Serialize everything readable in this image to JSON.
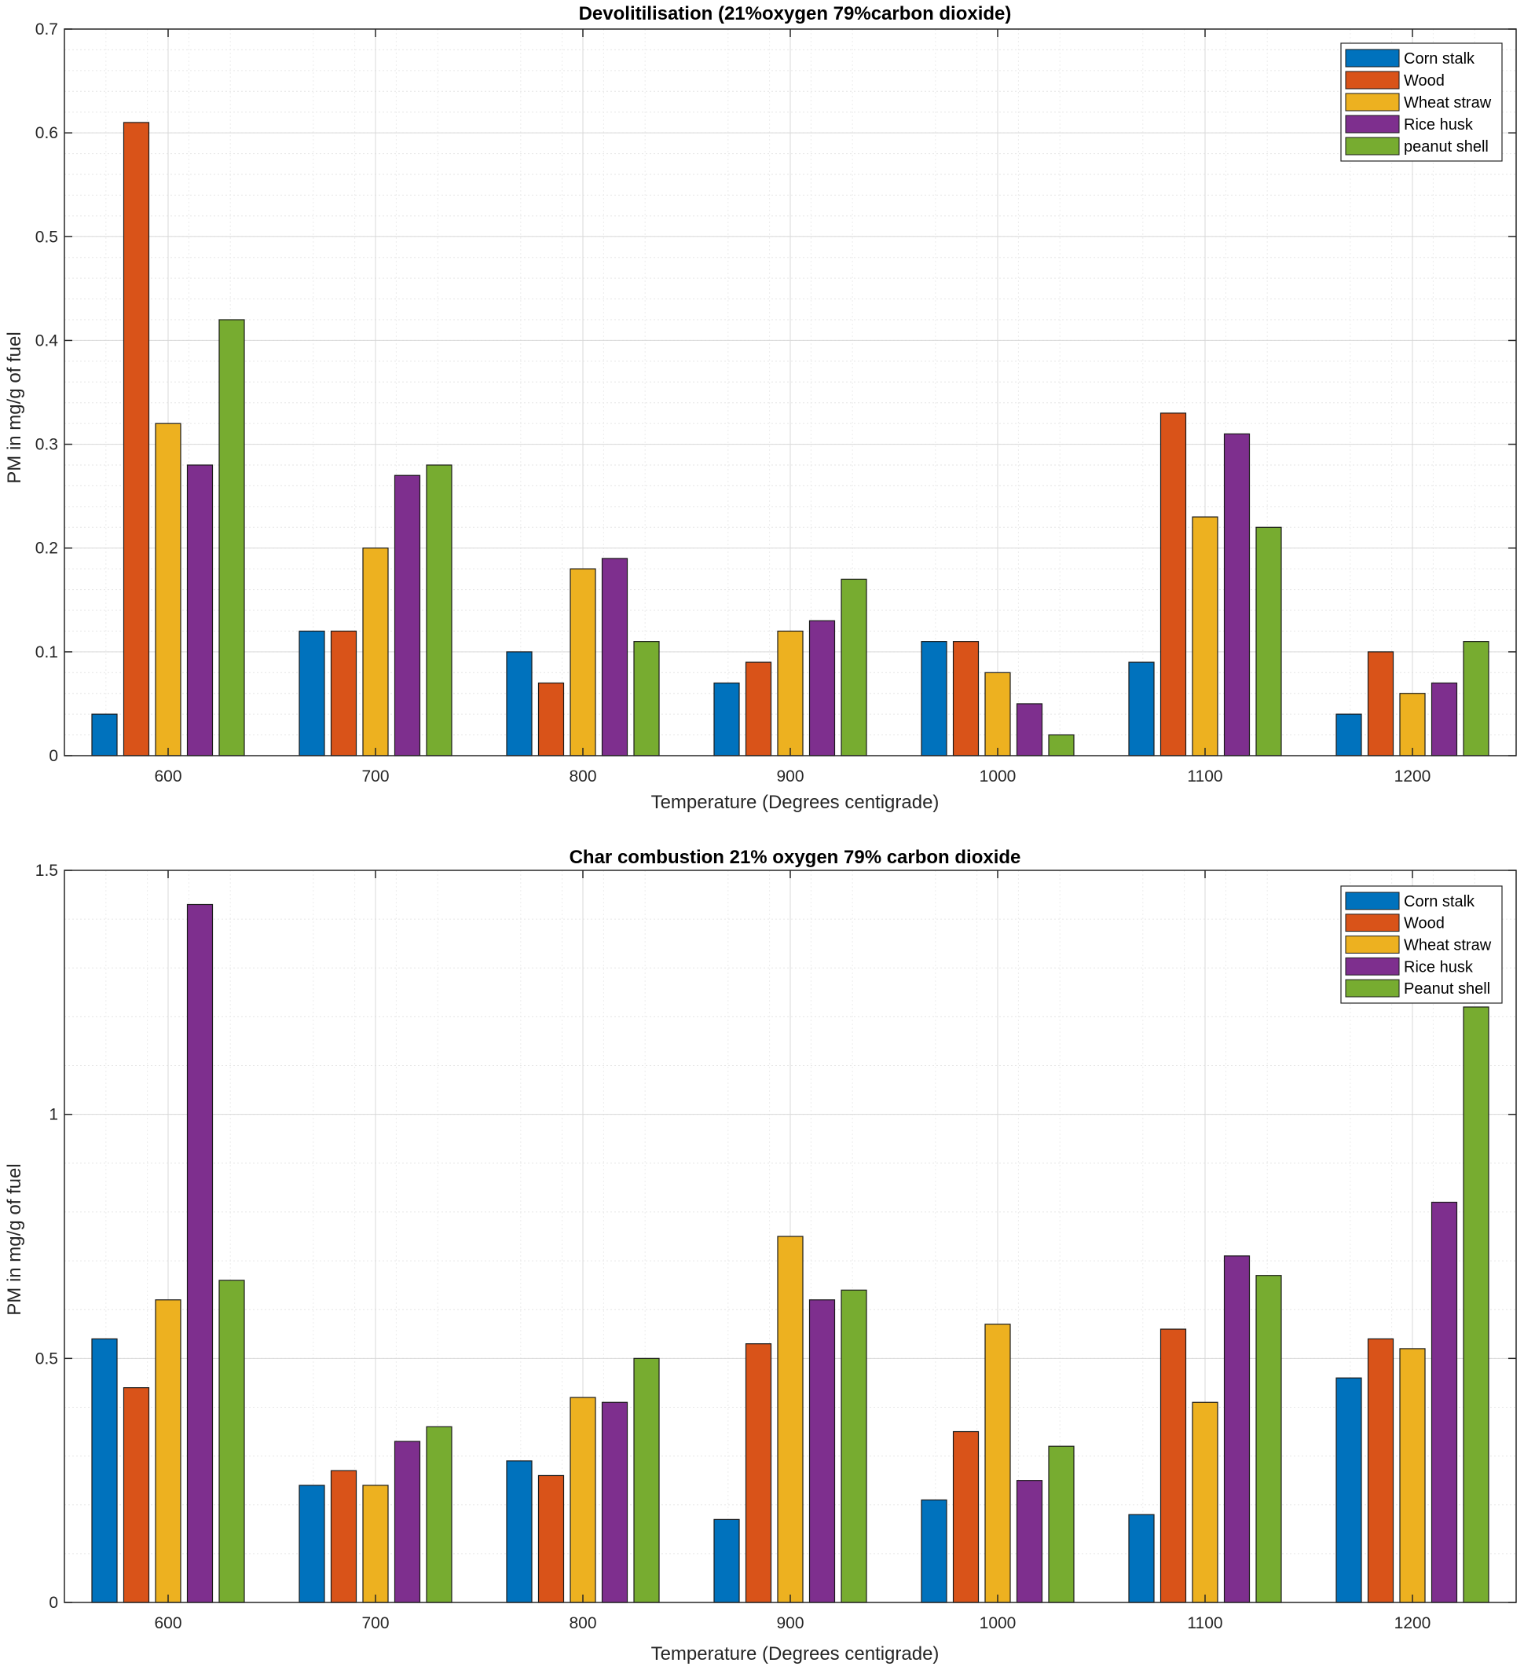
{
  "chart_data": [
    {
      "type": "bar",
      "title": "Devolitilisation (21%oxygen 79%carbon dioxide)",
      "xlabel": "Temperature (Degrees centigrade)",
      "ylabel": "PM in mg/g of fuel",
      "categories": [
        "600",
        "700",
        "800",
        "900",
        "1000",
        "1100",
        "1200"
      ],
      "ylim": [
        0,
        0.7
      ],
      "yticks": [
        0,
        0.1,
        0.2,
        0.3,
        0.4,
        0.5,
        0.6,
        0.7
      ],
      "ytick_labels": [
        "0",
        "0.1",
        "0.2",
        "0.3",
        "0.4",
        "0.5",
        "0.6",
        "0.7"
      ],
      "grid": true,
      "minor_grid": true,
      "legend_position": "top-right",
      "series": [
        {
          "name": "Corn stalk",
          "color": "#0072BD",
          "values": [
            0.04,
            0.12,
            0.1,
            0.07,
            0.11,
            0.09,
            0.04
          ]
        },
        {
          "name": "Wood",
          "color": "#D95319",
          "values": [
            0.61,
            0.12,
            0.07,
            0.09,
            0.11,
            0.33,
            0.1
          ]
        },
        {
          "name": "Wheat straw",
          "color": "#EDB120",
          "values": [
            0.32,
            0.2,
            0.18,
            0.12,
            0.08,
            0.23,
            0.06
          ]
        },
        {
          "name": "Rice husk",
          "color": "#7E2F8E",
          "values": [
            0.28,
            0.27,
            0.19,
            0.13,
            0.05,
            0.31,
            0.07
          ]
        },
        {
          "name": "peanut shell",
          "color": "#77AC30",
          "values": [
            0.42,
            0.28,
            0.11,
            0.17,
            0.02,
            0.22,
            0.11
          ]
        }
      ]
    },
    {
      "type": "bar",
      "title": "Char combustion 21% oxygen 79% carbon dioxide",
      "xlabel": "Temperature (Degrees centigrade)",
      "ylabel": "PM in mg/g of fuel",
      "categories": [
        "600",
        "700",
        "800",
        "900",
        "1000",
        "1100",
        "1200"
      ],
      "ylim": [
        0,
        1.5
      ],
      "yticks": [
        0,
        0.5,
        1,
        1.5
      ],
      "ytick_labels": [
        "0",
        "0.5",
        "1",
        "1.5"
      ],
      "grid": true,
      "minor_grid": true,
      "legend_position": "top-right",
      "series": [
        {
          "name": "Corn stalk",
          "color": "#0072BD",
          "values": [
            0.54,
            0.24,
            0.29,
            0.17,
            0.21,
            0.18,
            0.46
          ]
        },
        {
          "name": "Wood",
          "color": "#D95319",
          "values": [
            0.44,
            0.27,
            0.26,
            0.53,
            0.35,
            0.56,
            0.54
          ]
        },
        {
          "name": "Wheat straw",
          "color": "#EDB120",
          "values": [
            0.62,
            0.24,
            0.42,
            0.75,
            0.57,
            0.41,
            0.52
          ]
        },
        {
          "name": "Rice husk",
          "color": "#7E2F8E",
          "values": [
            1.43,
            0.33,
            0.41,
            0.62,
            0.25,
            0.71,
            0.82
          ]
        },
        {
          "name": "Peanut shell",
          "color": "#77AC30",
          "values": [
            0.66,
            0.36,
            0.5,
            0.64,
            0.32,
            0.67,
            1.22
          ]
        }
      ]
    }
  ]
}
